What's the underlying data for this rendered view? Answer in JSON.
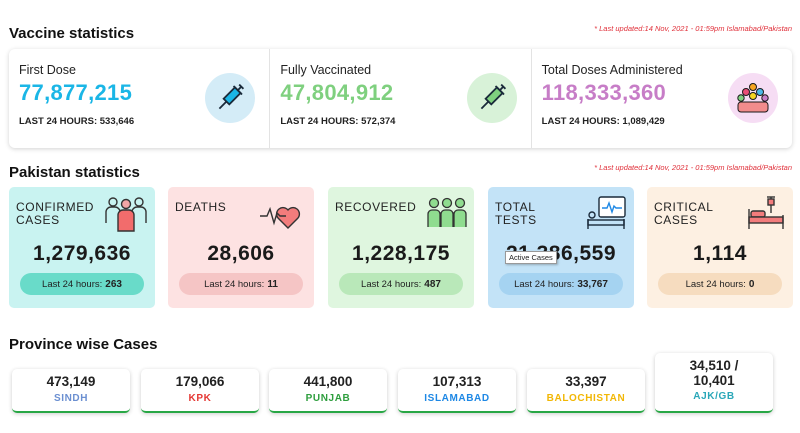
{
  "vaccine": {
    "title": "Vaccine statistics",
    "last_updated": "* Last updated:14 Nov, 2021 - 01:59pm Islamabad/Pakistan",
    "cards": [
      {
        "label": "First Dose",
        "value": "77,877,215",
        "last24": "LAST 24 HOURS: 533,646",
        "color": "#1ab6e6",
        "icon": "syringe-icon"
      },
      {
        "label": "Fully Vaccinated",
        "value": "47,804,912",
        "last24": "LAST 24 HOURS: 572,374",
        "color": "#7fd07f",
        "icon": "syringe-icon"
      },
      {
        "label": "Total Doses Administered",
        "value": "118,333,360",
        "last24": "LAST 24 HOURS: 1,089,429",
        "color": "#c77dc7",
        "icon": "crowd-icon"
      }
    ]
  },
  "pakistan": {
    "title": "Pakistan statistics",
    "last_updated": "* Last updated:14 Nov, 2021 - 01:59pm Islamabad/Pakistan",
    "last24_label": "Last 24 hours:",
    "cards": [
      {
        "label1": "CONFIRMED",
        "label2": "CASES",
        "value": "1,279,636",
        "last24": "263",
        "bg": "#c9f3f1",
        "pill": "#69dbc9",
        "icon": "people-group-icon"
      },
      {
        "label1": "DEATHS",
        "label2": "",
        "value": "28,606",
        "last24": "11",
        "bg": "#fde2e2",
        "pill": "#f5c5c5",
        "icon": "heartbeat-icon"
      },
      {
        "label1": "RECOVERED",
        "label2": "",
        "value": "1,228,175",
        "last24": "487",
        "bg": "#dff6df",
        "pill": "#b9e8b9",
        "icon": "recovered-people-icon"
      },
      {
        "label1": "TOTAL",
        "label2": "TESTS",
        "value": "21,386,559",
        "last24": "33,767",
        "bg": "#c3e3f7",
        "pill": "#a5d3f1",
        "icon": "patient-monitor-icon"
      },
      {
        "label1": "CRITICAL",
        "label2": "CASES",
        "value": "1,114",
        "last24": "0",
        "bg": "#fdf0e2",
        "pill": "#f6dcbf",
        "icon": "hospital-bed-icon"
      }
    ],
    "tooltip": "Active Cases"
  },
  "provinces": {
    "title": "Province wise Cases",
    "items": [
      {
        "value": "473,149",
        "name": "SINDH",
        "color": "#6b8fd1"
      },
      {
        "value": "179,066",
        "name": "KPK",
        "color": "#e53935"
      },
      {
        "value": "441,800",
        "name": "PUNJAB",
        "color": "#2e9e3e"
      },
      {
        "value": "107,313",
        "name": "ISLAMABAD",
        "color": "#1e88e5"
      },
      {
        "value": "33,397",
        "name": "BALOCHISTAN",
        "color": "#f2b705"
      },
      {
        "value_line1": "34,510 /",
        "value_line2": "10,401",
        "name": "AJK/GB",
        "color": "#2aa7b8"
      }
    ]
  }
}
